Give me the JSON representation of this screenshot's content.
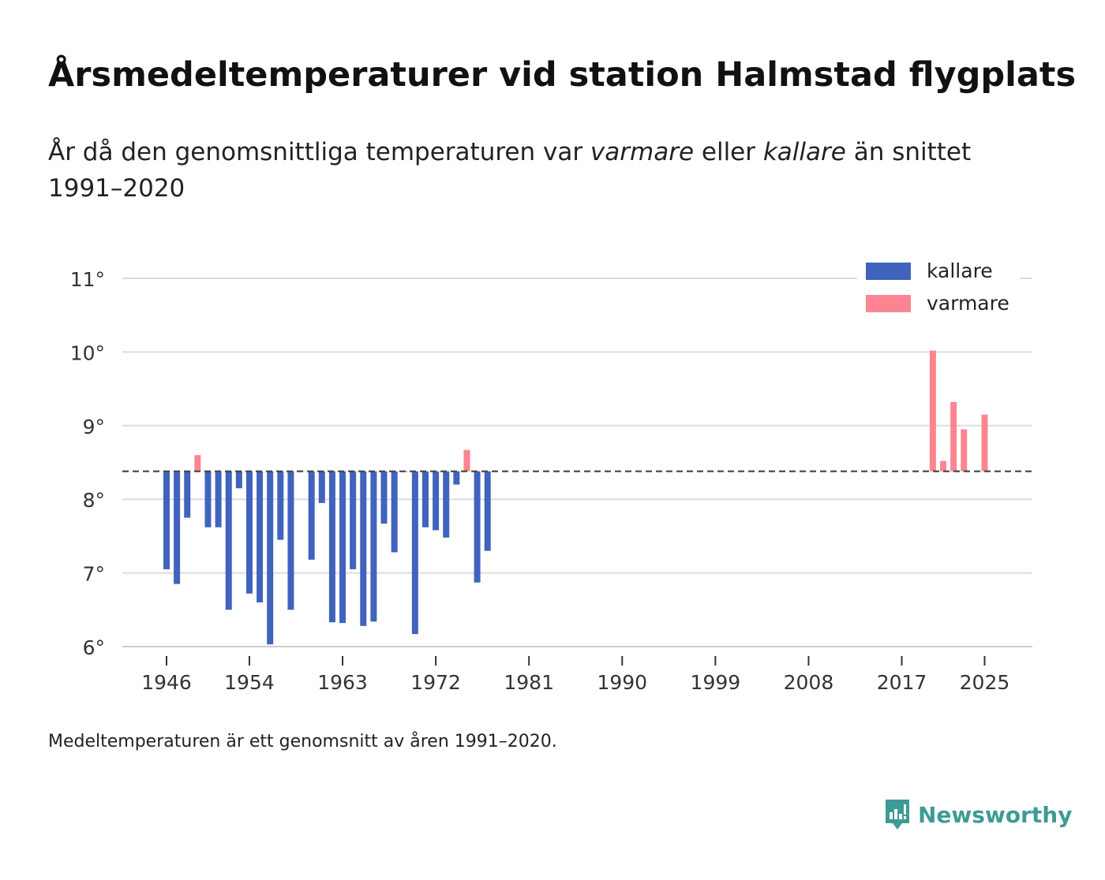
{
  "title": "Årsmedeltemperaturer vid station Halmstad flygplats",
  "subtitle": {
    "before": "År då den genomsnittliga temperaturen var ",
    "em1": "varmare",
    "mid": " eller ",
    "em2": "kallare",
    "after": " än snittet 1991–2020"
  },
  "footnote": "Medeltemperaturen är ett genomsnitt av åren 1991–2020.",
  "brand": "Newsworthy",
  "colors": {
    "cold": "#4063bd",
    "warm": "#fc8591",
    "grid": "#dddddd",
    "baseline": "#444444",
    "brand": "#3f9a96"
  },
  "chart_data": {
    "type": "bar",
    "title": "Årsmedeltemperaturer vid station Halmstad flygplats",
    "xlabel": "",
    "ylabel": "",
    "baseline": 8.38,
    "xlim": [
      1941.5,
      2029.7
    ],
    "ylim": [
      6,
      11.25
    ],
    "x_ticks": [
      1946,
      1954,
      1963,
      1972,
      1981,
      1990,
      1999,
      2008,
      2017,
      2025
    ],
    "y_ticks": [
      6,
      7,
      8,
      9,
      10,
      11
    ],
    "y_tick_labels": [
      "6°",
      "7°",
      "8°",
      "9°",
      "10°",
      "11°"
    ],
    "legend": [
      {
        "name": "kallare",
        "color": "#4063bd"
      },
      {
        "name": "varmare",
        "color": "#fc8591"
      }
    ],
    "legend_position": "top-right",
    "years": [
      1946,
      1947,
      1948,
      1949,
      1950,
      1951,
      1952,
      1953,
      1954,
      1955,
      1956,
      1957,
      1958,
      1959,
      1960,
      1961,
      1962,
      1963,
      1964,
      1965,
      1966,
      1967,
      1968,
      1969,
      1970,
      1971,
      1972,
      1973,
      1974,
      1975,
      1976,
      1977,
      2020,
      2021,
      2022,
      2023,
      2025
    ],
    "values": [
      7.05,
      6.85,
      7.75,
      8.6,
      7.62,
      7.62,
      6.5,
      8.15,
      6.72,
      6.6,
      6.03,
      7.45,
      6.5,
      8.39,
      7.18,
      7.95,
      6.33,
      6.32,
      7.05,
      6.28,
      6.34,
      7.67,
      7.28,
      8.38,
      6.17,
      7.62,
      7.58,
      7.48,
      8.2,
      8.67,
      6.87,
      7.3,
      10.02,
      8.52,
      9.32,
      8.95,
      9.15
    ]
  }
}
